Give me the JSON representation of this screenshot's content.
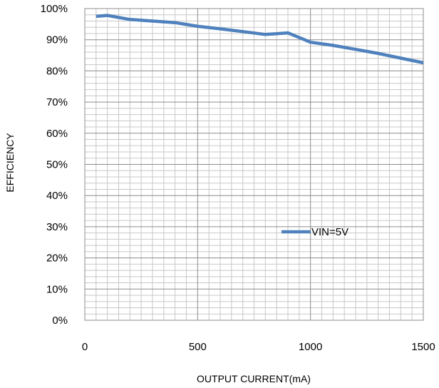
{
  "chart_data": {
    "type": "line",
    "title": "",
    "xlabel": "OUTPUT CURRENT(mA)",
    "ylabel": "EFFICIENCY",
    "xlim": [
      0,
      1500
    ],
    "ylim": [
      0,
      100
    ],
    "x_ticks": [
      "0",
      "500",
      "1000",
      "1500"
    ],
    "y_ticks": [
      "0%",
      "10%",
      "20%",
      "30%",
      "40%",
      "50%",
      "60%",
      "70%",
      "80%",
      "90%",
      "100%"
    ],
    "grid": true,
    "legend_position": "center-right",
    "series": [
      {
        "name": "VIN=5V",
        "color": "#4f81bd",
        "x": [
          50,
          100,
          200,
          300,
          400,
          500,
          600,
          700,
          800,
          900,
          1000,
          1100,
          1200,
          1300,
          1400,
          1500
        ],
        "y": [
          97.5,
          97.8,
          96.5,
          96.0,
          95.5,
          94.3,
          93.5,
          92.6,
          91.7,
          92.2,
          89.2,
          88.2,
          86.9,
          85.6,
          84.1,
          82.6
        ]
      }
    ]
  }
}
